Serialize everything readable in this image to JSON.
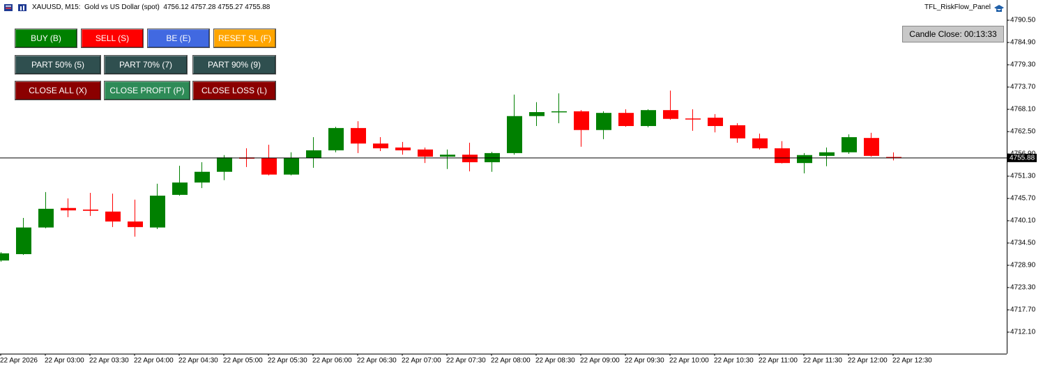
{
  "chart_data": {
    "type": "candlestick",
    "title": "XAUUSD, M15:  Gold vs US Dollar (spot)",
    "indicator": "TFL_RiskFlow_Panel",
    "candle_close": "Candle Close: 00:13:33",
    "x": [
      "22 Apr 2026",
      null,
      "22 Apr 03:00",
      null,
      "22 Apr 03:30",
      null,
      "22 Apr 04:00",
      null,
      "22 Apr 04:30",
      null,
      "22 Apr 05:00",
      null,
      "22 Apr 05:30",
      null,
      "22 Apr 06:00",
      null,
      "22 Apr 06:30",
      null,
      "22 Apr 07:00",
      null,
      "22 Apr 07:30",
      null,
      "22 Apr 08:00",
      null,
      "22 Apr 08:30",
      null,
      "22 Apr 09:00",
      null,
      "22 Apr 09:30",
      null,
      "22 Apr 10:00",
      null,
      "22 Apr 10:30",
      null,
      "22 Apr 11:00",
      null,
      "22 Apr 11:30",
      null,
      "22 Apr 12:00",
      null,
      "22 Apr 12:30"
    ],
    "open": [
      4730.1,
      4731.7,
      4738.4,
      4743.3,
      4742.9,
      4742.4,
      4739.9,
      4738.4,
      4746.6,
      4749.7,
      4752.4,
      4756.0,
      4755.9,
      4751.7,
      4755.9,
      4757.8,
      4763.4,
      4759.5,
      4758.5,
      4758.0,
      4756.2,
      4756.7,
      4754.8,
      4757.1,
      4766.4,
      4767.4,
      4767.6,
      4762.9,
      4767.2,
      4763.9,
      4767.9,
      4765.8,
      4766.0,
      4764.1,
      4760.8,
      4758.3,
      4754.6,
      4756.4,
      4757.3,
      4760.9,
      4756.12
    ],
    "high": [
      4732.2,
      4740.8,
      4747.3,
      4745.7,
      4747.1,
      4746.9,
      4745.4,
      4749.4,
      4753.9,
      4754.8,
      4756.6,
      4758.3,
      4759.2,
      4757.3,
      4761.1,
      4763.7,
      4765.1,
      4761.1,
      4759.9,
      4758.5,
      4758.0,
      4759.7,
      4757.4,
      4771.8,
      4769.9,
      4772.1,
      4767.9,
      4767.6,
      4768.1,
      4768.1,
      4772.8,
      4768.1,
      4766.9,
      4764.6,
      4762.0,
      4760.1,
      4757.1,
      4758.5,
      4761.8,
      4762.2,
      4757.28
    ],
    "low": [
      4729.8,
      4731.5,
      4738.2,
      4741.0,
      4741.3,
      4738.5,
      4736.1,
      4738.0,
      4746.4,
      4748.3,
      4750.3,
      4753.6,
      4751.5,
      4751.5,
      4753.4,
      4757.3,
      4757.1,
      4757.6,
      4756.7,
      4754.6,
      4753.1,
      4752.5,
      4752.4,
      4756.7,
      4763.9,
      4764.6,
      4758.7,
      4760.6,
      4763.7,
      4763.6,
      4765.5,
      4762.7,
      4762.3,
      4759.7,
      4758.0,
      4754.5,
      4752.0,
      4753.8,
      4756.9,
      4756.2,
      4755.27
    ],
    "close": [
      4731.9,
      4738.4,
      4743.1,
      4742.7,
      4742.6,
      4739.9,
      4738.5,
      4746.4,
      4749.7,
      4752.4,
      4756.0,
      4755.7,
      4751.7,
      4755.9,
      4757.8,
      4763.4,
      4759.5,
      4758.3,
      4757.8,
      4756.2,
      4756.7,
      4754.8,
      4757.1,
      4766.4,
      4767.4,
      4767.6,
      4762.9,
      4767.2,
      4763.9,
      4767.9,
      4765.7,
      4765.7,
      4763.9,
      4760.8,
      4758.3,
      4754.6,
      4756.6,
      4757.3,
      4761.1,
      4756.4,
      4755.88
    ],
    "up_color": "#008000",
    "down_color": "#ff0000",
    "ylim": [
      4706.68,
      4795.58
    ],
    "yticks": [
      {
        "value": 4712.1,
        "label": "4712.10"
      },
      {
        "value": 4717.7,
        "label": "4717.70"
      },
      {
        "value": 4723.3,
        "label": "4723.30"
      },
      {
        "value": 4728.9,
        "label": "4728.90"
      },
      {
        "value": 4734.5,
        "label": "4734.50"
      },
      {
        "value": 4740.1,
        "label": "4740.10"
      },
      {
        "value": 4745.7,
        "label": "4745.70"
      },
      {
        "value": 4751.3,
        "label": "4751.30"
      },
      {
        "value": 4756.9,
        "label": "4756.90"
      },
      {
        "value": 4762.5,
        "label": "4762.50"
      },
      {
        "value": 4768.1,
        "label": "4768.10"
      },
      {
        "value": 4773.7,
        "label": "4773.70"
      },
      {
        "value": 4779.3,
        "label": "4779.30"
      },
      {
        "value": 4784.9,
        "label": "4784.90"
      },
      {
        "value": 4790.5,
        "label": "4790.50"
      }
    ],
    "grid": false
  },
  "panel": {
    "buttons": [
      [
        "BUY (B)",
        "SELL (S)",
        "BE (E)",
        "RESET SL (F)"
      ],
      [
        "PART 50% (5)",
        "PART 70% (7)",
        "PART 90% (9)"
      ],
      [
        "CLOSE ALL (X)",
        "CLOSE PROFIT (P)",
        "CLOSE LOSS (L)"
      ]
    ]
  }
}
